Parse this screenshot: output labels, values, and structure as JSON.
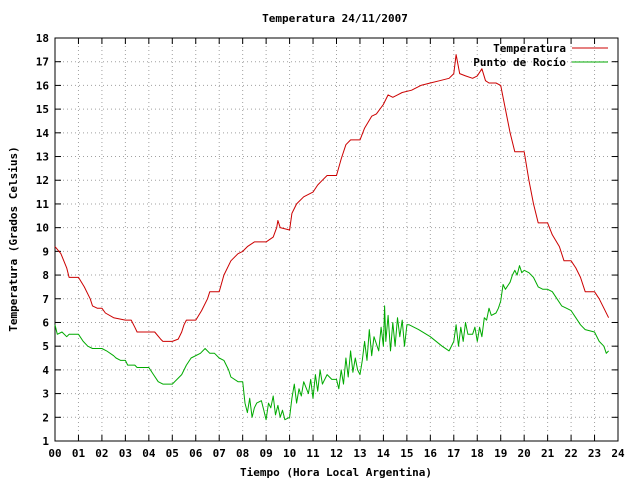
{
  "chart_data": {
    "type": "line",
    "title": "Temperatura 24/11/2007",
    "xlabel": "Tiempo (Hora Local Argentina)",
    "ylabel": "Temperatura (Grados Celsius)",
    "xlim": [
      0,
      24
    ],
    "ylim": [
      1,
      18
    ],
    "x_ticks": [
      "00",
      "01",
      "02",
      "03",
      "04",
      "05",
      "06",
      "07",
      "08",
      "09",
      "10",
      "11",
      "12",
      "13",
      "14",
      "15",
      "16",
      "17",
      "18",
      "19",
      "20",
      "21",
      "22",
      "23",
      "24"
    ],
    "y_ticks": [
      1,
      2,
      3,
      4,
      5,
      6,
      7,
      8,
      9,
      10,
      11,
      12,
      13,
      14,
      15,
      16,
      17,
      18
    ],
    "grid": true,
    "legend_position": "top-right",
    "colors": {
      "temperatura": "#cc0000",
      "rocio": "#00aa00"
    },
    "series": [
      {
        "name": "Temperatura",
        "points": [
          [
            0,
            9.2
          ],
          [
            0.25,
            8.9
          ],
          [
            0.5,
            8.3
          ],
          [
            0.6,
            7.9
          ],
          [
            1.0,
            7.9
          ],
          [
            1.25,
            7.5
          ],
          [
            1.5,
            7.0
          ],
          [
            1.6,
            6.7
          ],
          [
            1.8,
            6.6
          ],
          [
            2.0,
            6.6
          ],
          [
            2.15,
            6.4
          ],
          [
            2.5,
            6.2
          ],
          [
            3.0,
            6.1
          ],
          [
            3.25,
            6.1
          ],
          [
            3.4,
            5.8
          ],
          [
            3.5,
            5.6
          ],
          [
            4.0,
            5.6
          ],
          [
            4.25,
            5.6
          ],
          [
            4.5,
            5.3
          ],
          [
            4.6,
            5.2
          ],
          [
            5.0,
            5.2
          ],
          [
            5.25,
            5.3
          ],
          [
            5.4,
            5.6
          ],
          [
            5.5,
            5.9
          ],
          [
            5.6,
            6.1
          ],
          [
            6.0,
            6.1
          ],
          [
            6.25,
            6.5
          ],
          [
            6.5,
            7.0
          ],
          [
            6.6,
            7.3
          ],
          [
            7.0,
            7.3
          ],
          [
            7.2,
            8.0
          ],
          [
            7.5,
            8.6
          ],
          [
            7.8,
            8.9
          ],
          [
            8.0,
            9.0
          ],
          [
            8.2,
            9.2
          ],
          [
            8.5,
            9.4
          ],
          [
            9.0,
            9.4
          ],
          [
            9.3,
            9.6
          ],
          [
            9.45,
            10.0
          ],
          [
            9.5,
            10.3
          ],
          [
            9.6,
            10.0
          ],
          [
            10.0,
            9.9
          ],
          [
            10.1,
            10.6
          ],
          [
            10.3,
            11.0
          ],
          [
            10.6,
            11.3
          ],
          [
            11.0,
            11.5
          ],
          [
            11.2,
            11.8
          ],
          [
            11.4,
            12.0
          ],
          [
            11.6,
            12.2
          ],
          [
            12.0,
            12.2
          ],
          [
            12.2,
            12.9
          ],
          [
            12.4,
            13.5
          ],
          [
            12.6,
            13.7
          ],
          [
            13.0,
            13.7
          ],
          [
            13.2,
            14.2
          ],
          [
            13.5,
            14.7
          ],
          [
            13.7,
            14.8
          ],
          [
            14.0,
            15.2
          ],
          [
            14.2,
            15.6
          ],
          [
            14.4,
            15.5
          ],
          [
            14.6,
            15.6
          ],
          [
            14.8,
            15.7
          ],
          [
            15.2,
            15.8
          ],
          [
            15.6,
            16.0
          ],
          [
            16.0,
            16.1
          ],
          [
            16.4,
            16.2
          ],
          [
            16.8,
            16.3
          ],
          [
            17.0,
            16.5
          ],
          [
            17.1,
            17.3
          ],
          [
            17.25,
            16.5
          ],
          [
            17.5,
            16.4
          ],
          [
            17.8,
            16.3
          ],
          [
            18.0,
            16.4
          ],
          [
            18.2,
            16.7
          ],
          [
            18.35,
            16.2
          ],
          [
            18.5,
            16.1
          ],
          [
            18.8,
            16.1
          ],
          [
            19.0,
            16.0
          ],
          [
            19.2,
            15.0
          ],
          [
            19.4,
            14.0
          ],
          [
            19.6,
            13.2
          ],
          [
            20.0,
            13.2
          ],
          [
            20.2,
            12.0
          ],
          [
            20.4,
            11.0
          ],
          [
            20.6,
            10.2
          ],
          [
            21.0,
            10.2
          ],
          [
            21.2,
            9.7
          ],
          [
            21.5,
            9.2
          ],
          [
            21.7,
            8.6
          ],
          [
            22.0,
            8.6
          ],
          [
            22.2,
            8.3
          ],
          [
            22.4,
            7.9
          ],
          [
            22.6,
            7.3
          ],
          [
            23.0,
            7.3
          ],
          [
            23.2,
            7.0
          ],
          [
            23.4,
            6.6
          ],
          [
            23.6,
            6.2
          ]
        ]
      },
      {
        "name": "Punto de Rocío",
        "points": [
          [
            0,
            5.9
          ],
          [
            0.1,
            5.5
          ],
          [
            0.3,
            5.6
          ],
          [
            0.5,
            5.4
          ],
          [
            0.6,
            5.5
          ],
          [
            1.0,
            5.5
          ],
          [
            1.2,
            5.2
          ],
          [
            1.4,
            5.0
          ],
          [
            1.6,
            4.9
          ],
          [
            2.0,
            4.9
          ],
          [
            2.2,
            4.8
          ],
          [
            2.5,
            4.6
          ],
          [
            2.6,
            4.5
          ],
          [
            2.8,
            4.4
          ],
          [
            3.0,
            4.4
          ],
          [
            3.1,
            4.2
          ],
          [
            3.4,
            4.2
          ],
          [
            3.5,
            4.1
          ],
          [
            4.0,
            4.1
          ],
          [
            4.2,
            3.8
          ],
          [
            4.4,
            3.5
          ],
          [
            4.6,
            3.4
          ],
          [
            5.0,
            3.4
          ],
          [
            5.2,
            3.6
          ],
          [
            5.4,
            3.8
          ],
          [
            5.6,
            4.2
          ],
          [
            5.8,
            4.5
          ],
          [
            6.2,
            4.7
          ],
          [
            6.4,
            4.9
          ],
          [
            6.6,
            4.7
          ],
          [
            6.8,
            4.7
          ],
          [
            7.0,
            4.5
          ],
          [
            7.2,
            4.4
          ],
          [
            7.4,
            4.0
          ],
          [
            7.5,
            3.7
          ],
          [
            7.8,
            3.5
          ],
          [
            8.0,
            3.5
          ],
          [
            8.1,
            2.6
          ],
          [
            8.2,
            2.2
          ],
          [
            8.3,
            2.8
          ],
          [
            8.4,
            2.0
          ],
          [
            8.5,
            2.4
          ],
          [
            8.6,
            2.6
          ],
          [
            8.8,
            2.7
          ],
          [
            8.9,
            2.3
          ],
          [
            9.0,
            1.9
          ],
          [
            9.1,
            2.6
          ],
          [
            9.2,
            2.4
          ],
          [
            9.3,
            2.9
          ],
          [
            9.4,
            2.1
          ],
          [
            9.5,
            2.5
          ],
          [
            9.6,
            2.0
          ],
          [
            9.7,
            2.3
          ],
          [
            9.8,
            1.9
          ],
          [
            10.0,
            2.0
          ],
          [
            10.1,
            2.8
          ],
          [
            10.2,
            3.4
          ],
          [
            10.3,
            2.6
          ],
          [
            10.4,
            3.2
          ],
          [
            10.5,
            2.9
          ],
          [
            10.6,
            3.5
          ],
          [
            10.8,
            3.0
          ],
          [
            10.9,
            3.6
          ],
          [
            11.0,
            2.8
          ],
          [
            11.1,
            3.8
          ],
          [
            11.2,
            3.1
          ],
          [
            11.3,
            4.0
          ],
          [
            11.4,
            3.4
          ],
          [
            11.6,
            3.8
          ],
          [
            11.8,
            3.6
          ],
          [
            12.0,
            3.6
          ],
          [
            12.1,
            3.2
          ],
          [
            12.2,
            4.0
          ],
          [
            12.3,
            3.4
          ],
          [
            12.4,
            4.5
          ],
          [
            12.5,
            3.7
          ],
          [
            12.6,
            4.8
          ],
          [
            12.7,
            3.9
          ],
          [
            12.8,
            4.5
          ],
          [
            12.9,
            4.0
          ],
          [
            13.0,
            3.8
          ],
          [
            13.1,
            4.4
          ],
          [
            13.2,
            5.2
          ],
          [
            13.3,
            4.4
          ],
          [
            13.4,
            5.7
          ],
          [
            13.5,
            4.6
          ],
          [
            13.6,
            5.4
          ],
          [
            13.8,
            4.8
          ],
          [
            13.9,
            5.8
          ],
          [
            14.0,
            5.0
          ],
          [
            14.05,
            6.7
          ],
          [
            14.1,
            5.2
          ],
          [
            14.2,
            6.3
          ],
          [
            14.3,
            4.8
          ],
          [
            14.4,
            6.0
          ],
          [
            14.5,
            5.0
          ],
          [
            14.6,
            6.2
          ],
          [
            14.7,
            5.4
          ],
          [
            14.8,
            6.1
          ],
          [
            14.9,
            5.0
          ],
          [
            15.0,
            5.9
          ],
          [
            15.1,
            5.9
          ],
          [
            15.5,
            5.7
          ],
          [
            16.0,
            5.4
          ],
          [
            16.5,
            5.0
          ],
          [
            16.8,
            4.8
          ],
          [
            17.0,
            5.2
          ],
          [
            17.1,
            5.9
          ],
          [
            17.2,
            5.0
          ],
          [
            17.3,
            5.8
          ],
          [
            17.4,
            5.2
          ],
          [
            17.5,
            6.0
          ],
          [
            17.6,
            5.5
          ],
          [
            17.8,
            5.5
          ],
          [
            17.9,
            5.8
          ],
          [
            18.0,
            5.2
          ],
          [
            18.1,
            5.8
          ],
          [
            18.2,
            5.4
          ],
          [
            18.3,
            6.2
          ],
          [
            18.4,
            6.1
          ],
          [
            18.5,
            6.6
          ],
          [
            18.6,
            6.3
          ],
          [
            18.8,
            6.4
          ],
          [
            18.9,
            6.6
          ],
          [
            19.0,
            6.9
          ],
          [
            19.1,
            7.6
          ],
          [
            19.2,
            7.4
          ],
          [
            19.4,
            7.7
          ],
          [
            19.5,
            8.0
          ],
          [
            19.6,
            8.2
          ],
          [
            19.7,
            8.0
          ],
          [
            19.8,
            8.4
          ],
          [
            19.9,
            8.1
          ],
          [
            20.0,
            8.2
          ],
          [
            20.2,
            8.1
          ],
          [
            20.4,
            7.9
          ],
          [
            20.6,
            7.5
          ],
          [
            20.8,
            7.4
          ],
          [
            21.0,
            7.4
          ],
          [
            21.2,
            7.3
          ],
          [
            21.4,
            7.0
          ],
          [
            21.6,
            6.7
          ],
          [
            21.8,
            6.6
          ],
          [
            22.0,
            6.5
          ],
          [
            22.2,
            6.2
          ],
          [
            22.4,
            5.9
          ],
          [
            22.6,
            5.7
          ],
          [
            23.0,
            5.6
          ],
          [
            23.2,
            5.2
          ],
          [
            23.4,
            5.0
          ],
          [
            23.5,
            4.7
          ],
          [
            23.6,
            4.8
          ]
        ]
      }
    ]
  }
}
